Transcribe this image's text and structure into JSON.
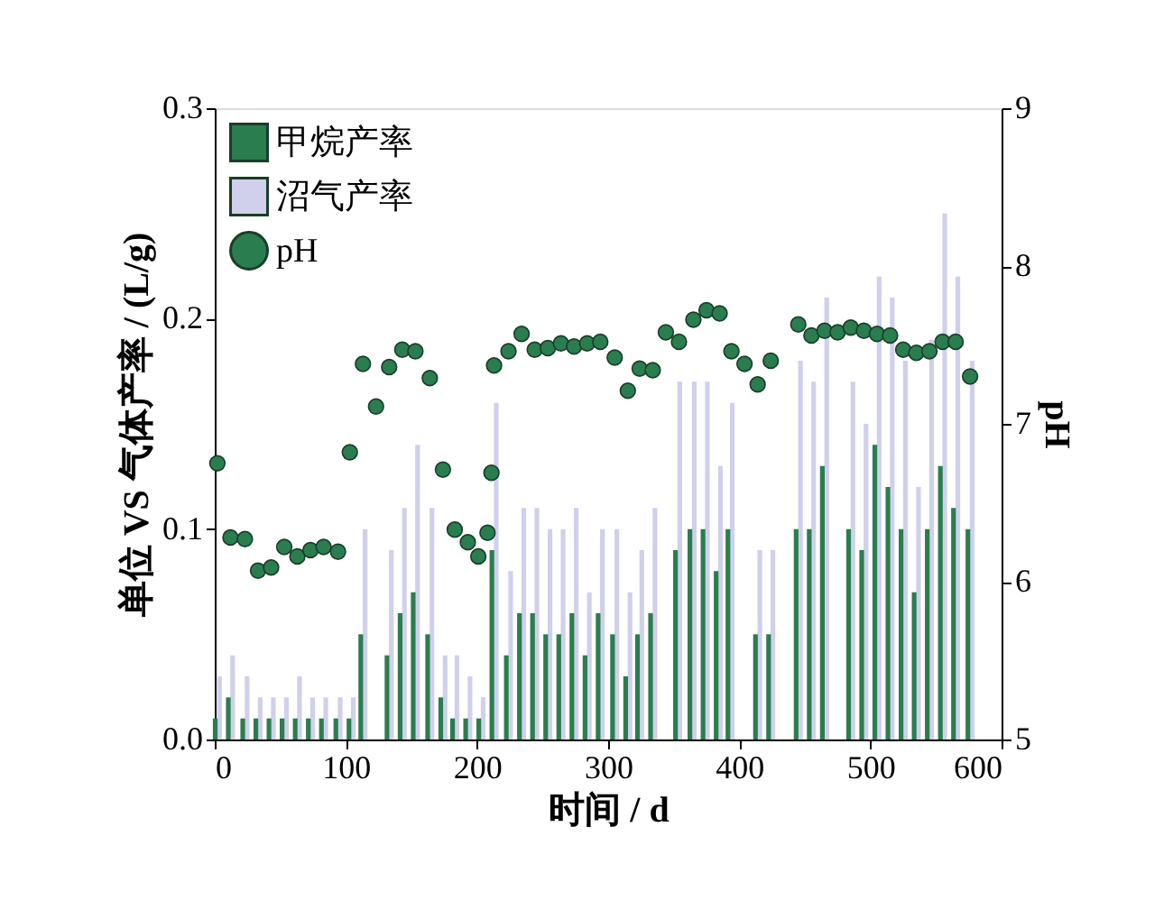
{
  "chart_data": {
    "type": "bar",
    "xlabel": "时间 / d",
    "ylabel": "单位 VS 气体产率 / (L/g)",
    "y2label": "pH",
    "xlim": [
      0,
      600
    ],
    "xticks": [
      0,
      100,
      200,
      300,
      400,
      500,
      600
    ],
    "ylim": [
      0,
      0.3
    ],
    "yticks": [
      {
        "value": 0,
        "label": "0.0"
      },
      0.1,
      0.2,
      0.3
    ],
    "y2lim": [
      5,
      9
    ],
    "y2ticks": [
      5,
      6,
      7,
      8,
      9
    ],
    "grid": false,
    "legend": "top left",
    "series": [
      {
        "name": "甲烷产率",
        "type": "bar",
        "color": "#2a7d4f",
        "x": [
          2,
          12,
          23,
          33,
          43,
          53,
          63,
          73,
          83,
          94,
          104,
          113,
          133,
          143,
          153,
          164,
          174,
          183,
          193,
          203,
          213,
          224,
          234,
          244,
          254,
          264,
          274,
          284,
          294,
          305,
          315,
          324,
          334,
          353,
          364,
          374,
          384,
          393,
          414,
          424,
          445,
          455,
          465,
          485,
          495,
          505,
          515,
          525,
          535,
          545,
          555,
          565,
          576
        ],
        "values": [
          0.01,
          0.02,
          0.01,
          0.01,
          0.01,
          0.01,
          0.01,
          0.01,
          0.01,
          0.01,
          0.01,
          0.05,
          0.04,
          0.06,
          0.07,
          0.05,
          0.02,
          0.01,
          0.01,
          0.01,
          0.09,
          0.04,
          0.06,
          0.06,
          0.05,
          0.05,
          0.06,
          0.04,
          0.06,
          0.05,
          0.03,
          0.05,
          0.06,
          0.09,
          0.1,
          0.1,
          0.08,
          0.1,
          0.05,
          0.05,
          0.1,
          0.1,
          0.13,
          0.1,
          0.09,
          0.14,
          0.12,
          0.1,
          0.07,
          0.1,
          0.13,
          0.11,
          0.1
        ]
      },
      {
        "name": "沼气产率",
        "type": "bar",
        "color": "#d0d0ec",
        "x": [
          2,
          12,
          23,
          33,
          43,
          53,
          63,
          73,
          83,
          94,
          104,
          113,
          133,
          143,
          153,
          164,
          174,
          183,
          193,
          203,
          213,
          224,
          234,
          244,
          254,
          264,
          274,
          284,
          294,
          305,
          315,
          324,
          334,
          353,
          364,
          374,
          384,
          393,
          414,
          424,
          445,
          455,
          465,
          485,
          495,
          505,
          515,
          525,
          535,
          545,
          555,
          565,
          576
        ],
        "values": [
          0.03,
          0.04,
          0.03,
          0.02,
          0.02,
          0.02,
          0.03,
          0.02,
          0.02,
          0.02,
          0.02,
          0.1,
          0.09,
          0.11,
          0.14,
          0.11,
          0.04,
          0.04,
          0.03,
          0.02,
          0.16,
          0.08,
          0.11,
          0.11,
          0.1,
          0.1,
          0.11,
          0.07,
          0.1,
          0.1,
          0.07,
          0.09,
          0.11,
          0.17,
          0.17,
          0.17,
          0.13,
          0.16,
          0.09,
          0.09,
          0.18,
          0.17,
          0.21,
          0.17,
          0.15,
          0.22,
          0.21,
          0.18,
          0.12,
          0.19,
          0.25,
          0.22,
          0.18
        ]
      },
      {
        "name": "pH",
        "type": "scatter",
        "axis": "y2",
        "marker": "circle",
        "color": "#2a7d4f",
        "x": [
          2,
          12,
          23,
          33,
          43,
          53,
          63,
          73,
          83,
          94,
          103,
          113,
          123,
          133,
          143,
          153,
          164,
          174,
          183,
          193,
          201,
          208,
          211,
          213,
          224,
          234,
          244,
          254,
          264,
          274,
          284,
          294,
          305,
          315,
          324,
          334,
          344,
          354,
          365,
          375,
          385,
          394,
          404,
          414,
          424,
          445,
          455,
          465,
          475,
          485,
          495,
          505,
          515,
          525,
          535,
          545,
          555,
          565,
          576
        ],
        "values": [
          6.75,
          6.28,
          6.27,
          6.07,
          6.09,
          6.22,
          6.16,
          6.2,
          6.22,
          6.19,
          6.82,
          7.38,
          7.11,
          7.36,
          7.47,
          7.46,
          7.29,
          6.71,
          6.33,
          6.25,
          6.16,
          6.31,
          6.69,
          7.37,
          7.46,
          7.57,
          7.47,
          7.48,
          7.51,
          7.49,
          7.51,
          7.52,
          7.42,
          7.21,
          7.35,
          7.34,
          7.58,
          7.52,
          7.66,
          7.72,
          7.7,
          7.46,
          7.38,
          7.25,
          7.4,
          7.63,
          7.56,
          7.59,
          7.58,
          7.61,
          7.59,
          7.57,
          7.56,
          7.47,
          7.45,
          7.46,
          7.52,
          7.52,
          7.3
        ]
      }
    ]
  }
}
